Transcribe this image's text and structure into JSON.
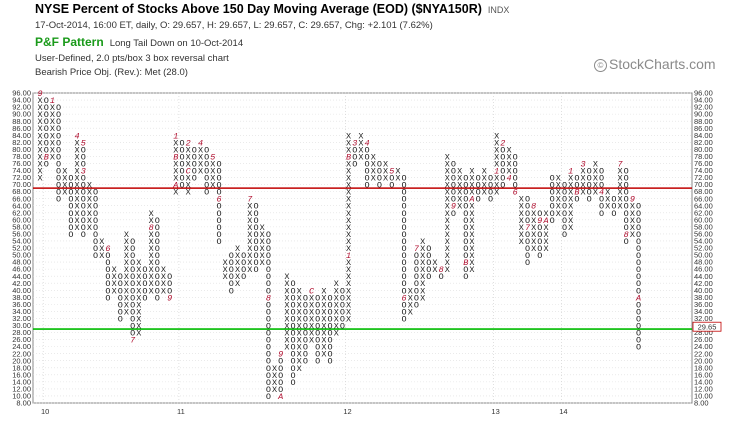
{
  "header": {
    "title": "NYSE Percent of Stocks Above 150 Day Moving Average (EOD) ($NYA150R)",
    "exchange": "INDX",
    "quote_line": "17-Oct-2014, 16:00 ET, daily, O: 29.657, H: 29.657, L: 29.657, C: 29.657, Chg: +2.101 (7.62%)",
    "pattern_label": "P&F Pattern",
    "pattern_name": "Long Tail Down on 10-Oct-2014",
    "settings": "User-Defined, 2.0 pts/box 3 box reversal chart",
    "price_objective": "Bearish Price Obj. (Rev.): Met (28.0)",
    "brand": "StockCharts.com",
    "brand_symbol": "©"
  },
  "colors": {
    "x_mark": "#222222",
    "o_mark": "#222222",
    "month_marker": "#b01030",
    "resistance_line": "#c00000",
    "support_line": "#00bb00",
    "price_box": "#c00000"
  },
  "chart_data": {
    "type": "point-and-figure",
    "box_size": 2.0,
    "reversal": 3,
    "ylim": [
      8,
      96
    ],
    "y_ticks": [
      "96.00",
      "94.00",
      "92.00",
      "90.00",
      "88.00",
      "86.00",
      "84.00",
      "82.00",
      "80.00",
      "78.00",
      "76.00",
      "74.00",
      "72.00",
      "70.00",
      "68.00",
      "66.00",
      "64.00",
      "62.00",
      "60.00",
      "58.00",
      "56.00",
      "54.00",
      "52.00",
      "50.00",
      "48.00",
      "46.00",
      "44.00",
      "42.00",
      "40.00",
      "38.00",
      "36.00",
      "34.00",
      "32.00",
      "30.00",
      "28.00",
      "26.00",
      "24.00",
      "22.00",
      "20.00",
      "18.00",
      "16.00",
      "14.00",
      "12.00",
      "10.00",
      "8.00"
    ],
    "x_labels": [
      {
        "label": "10",
        "column": 1
      },
      {
        "label": "11",
        "column": 23
      },
      {
        "label": "12",
        "column": 50
      },
      {
        "label": "13",
        "column": 74
      },
      {
        "label": "14",
        "column": 85
      }
    ],
    "resistance_level": 69,
    "support_level": 29,
    "last_value": 29.657,
    "price_label": "29.65",
    "columns": [
      {
        "type": "X",
        "from": 72,
        "to": 96,
        "markers": [
          {
            "box": 96,
            "label": "9"
          }
        ]
      },
      {
        "type": "O",
        "from": 76,
        "to": 94,
        "markers": [
          {
            "box": 78,
            "label": "B"
          }
        ]
      },
      {
        "type": "X",
        "from": 78,
        "to": 94,
        "markers": [
          {
            "box": 94,
            "label": "1"
          }
        ]
      },
      {
        "type": "O",
        "from": 66,
        "to": 92
      },
      {
        "type": "X",
        "from": 68,
        "to": 74
      },
      {
        "type": "O",
        "from": 56,
        "to": 72
      },
      {
        "type": "X",
        "from": 58,
        "to": 84,
        "markers": [
          {
            "box": 84,
            "label": "4"
          }
        ]
      },
      {
        "type": "O",
        "from": 56,
        "to": 82,
        "markers": [
          {
            "box": 82,
            "label": "5"
          },
          {
            "box": 74,
            "label": "3"
          }
        ]
      },
      {
        "type": "X",
        "from": 58,
        "to": 70
      },
      {
        "type": "O",
        "from": 50,
        "to": 68
      },
      {
        "type": "X",
        "from": 50,
        "to": 54
      },
      {
        "type": "O",
        "from": 38,
        "to": 52,
        "markers": [
          {
            "box": 52,
            "label": "6"
          }
        ]
      },
      {
        "type": "X",
        "from": 40,
        "to": 46
      },
      {
        "type": "O",
        "from": 32,
        "to": 44
      },
      {
        "type": "X",
        "from": 34,
        "to": 56
      },
      {
        "type": "O",
        "from": 26,
        "to": 54,
        "markers": [
          {
            "box": 26,
            "label": "7"
          }
        ]
      },
      {
        "type": "X",
        "from": 28,
        "to": 48
      },
      {
        "type": "O",
        "from": 38,
        "to": 46
      },
      {
        "type": "X",
        "from": 40,
        "to": 62,
        "markers": [
          {
            "box": 58,
            "label": "8"
          }
        ]
      },
      {
        "type": "O",
        "from": 38,
        "to": 60
      },
      {
        "type": "X",
        "from": 40,
        "to": 46
      },
      {
        "type": "O",
        "from": 38,
        "to": 44,
        "markers": [
          {
            "box": 38,
            "label": "9"
          }
        ]
      },
      {
        "type": "X",
        "from": 68,
        "to": 84,
        "markers": [
          {
            "box": 84,
            "label": "1"
          },
          {
            "box": 78,
            "label": "B"
          },
          {
            "box": 70,
            "label": "A"
          }
        ]
      },
      {
        "type": "O",
        "from": 70,
        "to": 82
      },
      {
        "type": "X",
        "from": 68,
        "to": 82,
        "markers": [
          {
            "box": 82,
            "label": "2"
          },
          {
            "box": 74,
            "label": "C"
          }
        ]
      },
      {
        "type": "O",
        "from": 72,
        "to": 80,
        "markers": [
          {
            "box": 82,
            "label": "3"
          }
        ]
      },
      {
        "type": "X",
        "from": 74,
        "to": 82,
        "markers": [
          {
            "box": 82,
            "label": "4"
          }
        ]
      },
      {
        "type": "O",
        "from": 68,
        "to": 80
      },
      {
        "type": "X",
        "from": 70,
        "to": 78,
        "markers": [
          {
            "box": 78,
            "label": "5"
          }
        ]
      },
      {
        "type": "O",
        "from": 54,
        "to": 76,
        "markers": [
          {
            "box": 66,
            "label": "6"
          }
        ]
      },
      {
        "type": "X",
        "from": 44,
        "to": 48
      },
      {
        "type": "O",
        "from": 40,
        "to": 50
      },
      {
        "type": "X",
        "from": 42,
        "to": 52
      },
      {
        "type": "O",
        "from": 44,
        "to": 50
      },
      {
        "type": "X",
        "from": 46,
        "to": 66,
        "markers": [
          {
            "box": 66,
            "label": "7"
          }
        ]
      },
      {
        "type": "O",
        "from": 46,
        "to": 64
      },
      {
        "type": "X",
        "from": 48,
        "to": 58
      },
      {
        "type": "O",
        "from": 10,
        "to": 56,
        "markers": [
          {
            "box": 38,
            "label": "8"
          }
        ]
      },
      {
        "type": "X",
        "from": 12,
        "to": 18
      },
      {
        "type": "O",
        "from": 10,
        "to": 22,
        "markers": [
          {
            "box": 10,
            "label": "A"
          },
          {
            "box": 22,
            "label": "9"
          }
        ]
      },
      {
        "type": "X",
        "from": 24,
        "to": 44
      },
      {
        "type": "O",
        "from": 14,
        "to": 42
      },
      {
        "type": "X",
        "from": 18,
        "to": 40
      },
      {
        "type": "O",
        "from": 20,
        "to": 38
      },
      {
        "type": "X",
        "from": 26,
        "to": 40,
        "markers": [
          {
            "box": 40,
            "label": "C"
          }
        ]
      },
      {
        "type": "O",
        "from": 20,
        "to": 38
      },
      {
        "type": "X",
        "from": 22,
        "to": 40
      },
      {
        "type": "O",
        "from": 20,
        "to": 38
      },
      {
        "type": "X",
        "from": 28,
        "to": 42
      },
      {
        "type": "O",
        "from": 30,
        "to": 40
      },
      {
        "type": "X",
        "from": 32,
        "to": 84,
        "markers": [
          {
            "box": 50,
            "label": "1"
          },
          {
            "box": 78,
            "label": "B"
          }
        ]
      },
      {
        "type": "O",
        "from": 76,
        "to": 82,
        "markers": [
          {
            "box": 82,
            "label": "3"
          }
        ]
      },
      {
        "type": "X",
        "from": 78,
        "to": 84
      },
      {
        "type": "O",
        "from": 70,
        "to": 82,
        "markers": [
          {
            "box": 82,
            "label": "4"
          }
        ]
      },
      {
        "type": "X",
        "from": 72,
        "to": 78
      },
      {
        "type": "O",
        "from": 70,
        "to": 76
      },
      {
        "type": "X",
        "from": 72,
        "to": 76
      },
      {
        "type": "O",
        "from": 70,
        "to": 74,
        "markers": [
          {
            "box": 74,
            "label": "5"
          }
        ]
      },
      {
        "type": "X",
        "from": 72,
        "to": 74
      },
      {
        "type": "O",
        "from": 32,
        "to": 72,
        "markers": [
          {
            "box": 38,
            "label": "6"
          }
        ]
      },
      {
        "type": "X",
        "from": 34,
        "to": 40
      },
      {
        "type": "O",
        "from": 36,
        "to": 52,
        "markers": [
          {
            "box": 52,
            "label": "7"
          }
        ]
      },
      {
        "type": "X",
        "from": 38,
        "to": 54
      },
      {
        "type": "O",
        "from": 44,
        "to": 52
      },
      {
        "type": "X",
        "from": 46,
        "to": 48
      },
      {
        "type": "O",
        "from": 44,
        "to": 46,
        "markers": [
          {
            "box": 46,
            "label": "8"
          }
        ]
      },
      {
        "type": "X",
        "from": 46,
        "to": 78
      },
      {
        "type": "O",
        "from": 62,
        "to": 76,
        "markers": [
          {
            "box": 64,
            "label": "9"
          }
        ]
      },
      {
        "type": "X",
        "from": 64,
        "to": 74
      },
      {
        "type": "O",
        "from": 44,
        "to": 72,
        "markers": [
          {
            "box": 48,
            "label": "B"
          }
        ]
      },
      {
        "type": "X",
        "from": 46,
        "to": 74,
        "markers": [
          {
            "box": 66,
            "label": "A"
          }
        ]
      },
      {
        "type": "O",
        "from": 66,
        "to": 72
      },
      {
        "type": "X",
        "from": 68,
        "to": 74
      },
      {
        "type": "O",
        "from": 66,
        "to": 72
      },
      {
        "type": "X",
        "from": 68,
        "to": 84,
        "markers": [
          {
            "box": 74,
            "label": "1"
          }
        ]
      },
      {
        "type": "O",
        "from": 70,
        "to": 82,
        "markers": [
          {
            "box": 82,
            "label": "2"
          }
        ]
      },
      {
        "type": "X",
        "from": 72,
        "to": 80,
        "markers": [
          {
            "box": 72,
            "label": "4"
          }
        ]
      },
      {
        "type": "O",
        "from": 68,
        "to": 78,
        "markers": [
          {
            "box": 68,
            "label": "6"
          }
        ]
      },
      {
        "type": "X",
        "from": 54,
        "to": 66
      },
      {
        "type": "O",
        "from": 48,
        "to": 66,
        "markers": [
          {
            "box": 58,
            "label": "7"
          }
        ]
      },
      {
        "type": "X",
        "from": 52,
        "to": 64,
        "markers": [
          {
            "box": 64,
            "label": "8"
          }
        ]
      },
      {
        "type": "O",
        "from": 50,
        "to": 62,
        "markers": [
          {
            "box": 60,
            "label": "9"
          }
        ]
      },
      {
        "type": "X",
        "from": 52,
        "to": 62,
        "markers": [
          {
            "box": 60,
            "label": "A"
          }
        ]
      },
      {
        "type": "O",
        "from": 60,
        "to": 72
      },
      {
        "type": "X",
        "from": 62,
        "to": 72
      },
      {
        "type": "O",
        "from": 56,
        "to": 70
      },
      {
        "type": "X",
        "from": 58,
        "to": 74,
        "markers": [
          {
            "box": 74,
            "label": "1"
          }
        ]
      },
      {
        "type": "O",
        "from": 66,
        "to": 72,
        "markers": [
          {
            "box": 68,
            "label": "B"
          }
        ]
      },
      {
        "type": "X",
        "from": 68,
        "to": 76,
        "markers": [
          {
            "box": 76,
            "label": "3"
          }
        ]
      },
      {
        "type": "O",
        "from": 66,
        "to": 74
      },
      {
        "type": "X",
        "from": 68,
        "to": 76
      },
      {
        "type": "O",
        "from": 62,
        "to": 74,
        "markers": [
          {
            "box": 68,
            "label": "4"
          }
        ]
      },
      {
        "type": "X",
        "from": 64,
        "to": 68
      },
      {
        "type": "O",
        "from": 62,
        "to": 66,
        "markers": [
          {
            "box": 68,
            "label": "6"
          }
        ]
      },
      {
        "type": "X",
        "from": 64,
        "to": 76,
        "markers": [
          {
            "box": 76,
            "label": "7"
          }
        ]
      },
      {
        "type": "O",
        "from": 54,
        "to": 74,
        "markers": [
          {
            "box": 56,
            "label": "8"
          }
        ]
      },
      {
        "type": "X",
        "from": 56,
        "to": 66,
        "markers": [
          {
            "box": 66,
            "label": "9"
          }
        ]
      },
      {
        "type": "O",
        "from": 24,
        "to": 64,
        "markers": [
          {
            "box": 38,
            "label": "A"
          }
        ]
      }
    ]
  }
}
